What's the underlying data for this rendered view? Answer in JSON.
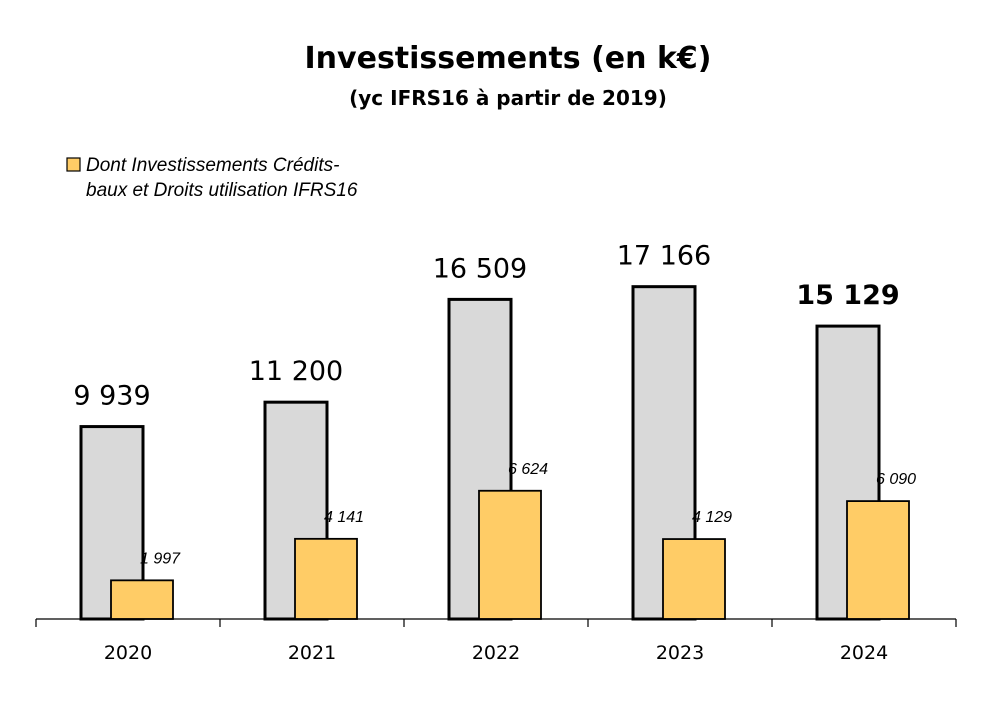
{
  "chart_data": {
    "type": "bar",
    "title": "Investissements  (en k€)",
    "subtitle": "(yc IFRS16 à partir de 2019)",
    "categories": [
      "2020",
      "2021",
      "2022",
      "2023",
      "2024"
    ],
    "series": [
      {
        "role": "total",
        "values": [
          9939,
          11200,
          16509,
          17166,
          15129
        ],
        "labels": [
          "9 939",
          "11 200",
          "16 509",
          "17 166",
          "15 129"
        ],
        "color": "#d9d9d9"
      },
      {
        "role": "subset",
        "name_lines": [
          "Dont Investissements Crédits-",
          "baux et Droits utilisation IFRS16"
        ],
        "values": [
          1997,
          4141,
          6624,
          4129,
          6090
        ],
        "labels": [
          "1 997",
          "4 141",
          "6 624",
          "4 129",
          "6 090"
        ],
        "color": "#ffcc66"
      }
    ],
    "bold_total_label_index": 4,
    "ylim": [
      0,
      20000
    ],
    "grid": false,
    "legend": "top-left"
  }
}
